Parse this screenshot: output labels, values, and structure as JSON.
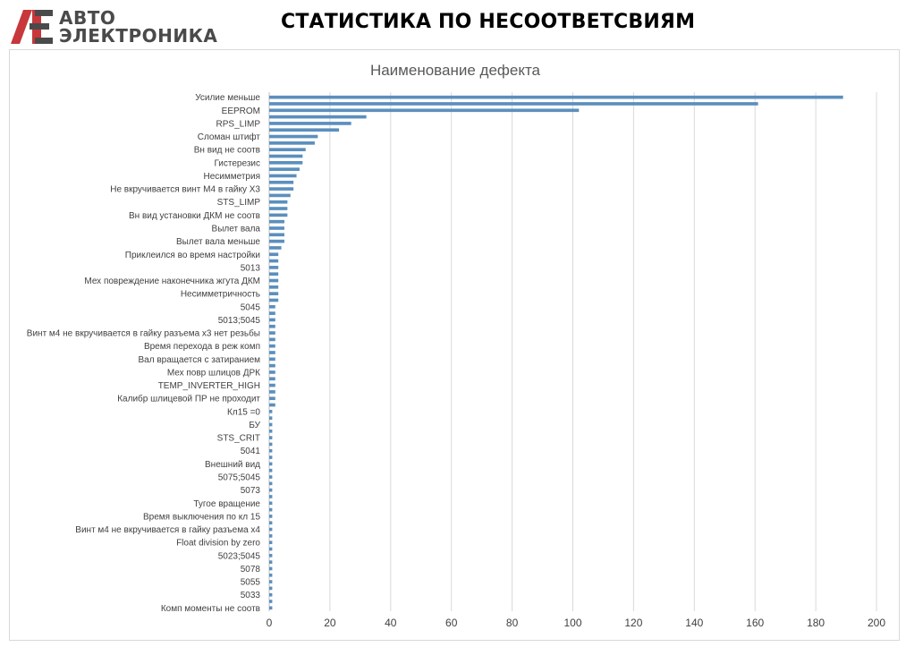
{
  "header": {
    "logo_line1": "АВТО",
    "logo_line2": "ЭЛЕКТРОНИКА",
    "title": "СТАТИСТИКА ПО НЕСООТВЕТСВИЯМ"
  },
  "colors": {
    "bar": "#5b8fbd",
    "grid": "#d9d9d9",
    "logo_red": "#c8373b",
    "logo_gray": "#4a4a4a"
  },
  "chart_data": {
    "type": "bar",
    "orientation": "horizontal",
    "title": "Наименование дефекта",
    "xlim": [
      0,
      200
    ],
    "x_ticks": [
      0,
      20,
      40,
      60,
      80,
      100,
      120,
      140,
      160,
      180,
      200
    ],
    "grid": "vertical",
    "legend": "none",
    "categories": [
      "Усилие меньше",
      "",
      "EEPROM",
      "",
      "RPS_LIMP",
      "",
      "Сломан штифт",
      "",
      "Вн вид не соотв",
      "",
      "Гистерезис",
      "",
      "Несимметрия",
      "",
      "Не вкручивается винт М4 в гайку Х3",
      "",
      "STS_LIMP",
      "",
      "Вн вид установки ДКМ не соотв",
      "",
      "Вылет вала",
      "",
      "Вылет вала меньше",
      "",
      "Приклеилcя во время настройки",
      "",
      "5013",
      "",
      "Мех повреждение наконечника жгута ДКМ",
      "",
      "Несимметричность",
      "",
      "5045",
      "",
      "5013;5045",
      "",
      "Винт м4 не вкручивается в гайку разъема х3 нет резьбы",
      "",
      "Время перехода в реж комп",
      "",
      "Вал вращается с затиранием",
      "",
      "Мех повр шлицов ДРК",
      "",
      "TEMP_INVERTER_HIGH",
      "",
      "Калибр шлицевой ПР не проходит",
      "",
      "Кл15 =0",
      "",
      "БУ",
      "",
      "STS_CRIT",
      "",
      "5041",
      "",
      "Внешний вид",
      "",
      "5075;5045",
      "",
      "5073",
      "",
      "Тугое вращение",
      "",
      "Время выключения по кл 15",
      "",
      "Винт м4 не вкручивается в гайку разъема х4",
      "",
      "Float division by zero",
      "",
      "5023;5045",
      "",
      "5078",
      "",
      "5055",
      "",
      "5033",
      "",
      "Комп моменты не соотв"
    ],
    "values": [
      189,
      161,
      102,
      32,
      27,
      23,
      16,
      15,
      12,
      11,
      11,
      10,
      9,
      8,
      8,
      7,
      6,
      6,
      6,
      5,
      5,
      5,
      5,
      4,
      3,
      3,
      3,
      3,
      3,
      3,
      3,
      3,
      2,
      2,
      2,
      2,
      2,
      2,
      2,
      2,
      2,
      2,
      2,
      2,
      2,
      2,
      2,
      2,
      1,
      1,
      1,
      1,
      1,
      1,
      1,
      1,
      1,
      1,
      1,
      1,
      1,
      1,
      1,
      1,
      1,
      1,
      1,
      1,
      1,
      1,
      1,
      1,
      1,
      1,
      1,
      1,
      1,
      1,
      1
    ]
  }
}
